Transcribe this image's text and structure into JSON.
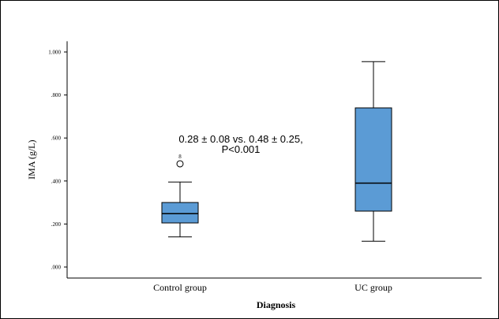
{
  "chart_data": {
    "type": "box",
    "xlabel": "Diagnosis",
    "ylabel": "IMA (g/L)",
    "ylim": [
      0,
      1.05
    ],
    "yticks": [
      0,
      0.2,
      0.4,
      0.6,
      0.8,
      1.0
    ],
    "ytick_labels": [
      ".000",
      ".200",
      ".400",
      ".600",
      ".800",
      "1.000"
    ],
    "categories": [
      "Control group",
      "UC group"
    ],
    "boxes": [
      {
        "category": "Control group",
        "whisker_low": 0.14,
        "q1": 0.205,
        "median": 0.248,
        "q3": 0.3,
        "whisker_high": 0.395,
        "outliers": [
          {
            "value": 0.48,
            "label": "8"
          }
        ]
      },
      {
        "category": "UC group",
        "whisker_low": 0.12,
        "q1": 0.26,
        "median": 0.39,
        "q3": 0.74,
        "whisker_high": 0.955,
        "outliers": []
      }
    ],
    "annotation": [
      "0.28 ± 0.08 vs. 0.48 ± 0.25,",
      "P<0.001"
    ],
    "box_color": "#5b9bd5",
    "grid": false
  }
}
